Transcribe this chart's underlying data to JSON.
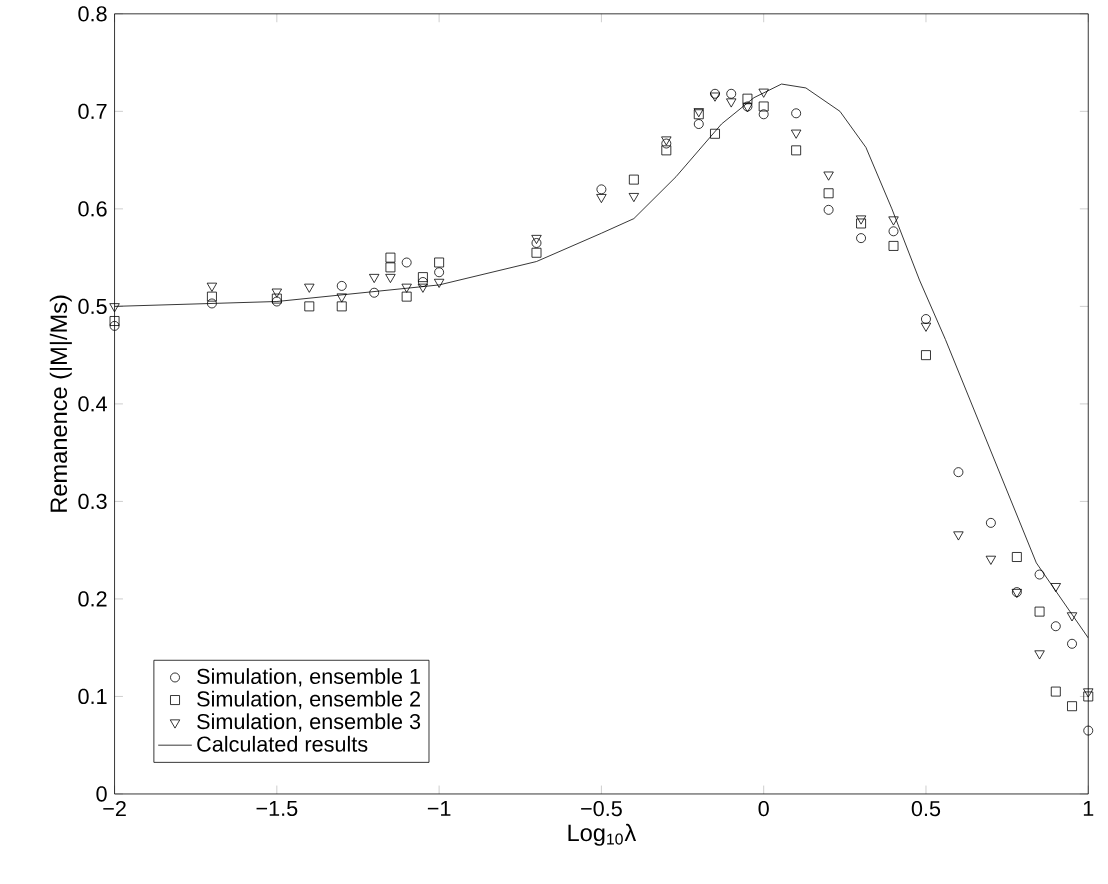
{
  "chart_data": {
    "type": "scatter",
    "xlabel": "Log$_{10}$λ",
    "ylabel": "Remanence (|M|/Ms)",
    "xlim": [
      -2,
      1
    ],
    "ylim": [
      0,
      0.8
    ],
    "xticks": [
      {
        "value": -2,
        "label": "−2"
      },
      {
        "value": -1.5,
        "label": "−1.5"
      },
      {
        "value": -1,
        "label": "−1"
      },
      {
        "value": -0.5,
        "label": "−0.5"
      },
      0,
      0.5,
      1
    ],
    "yticks": [
      0,
      0.1,
      0.2,
      0.3,
      0.4,
      0.5,
      0.6,
      0.7,
      0.8
    ],
    "legend": "bottom left",
    "grid": false,
    "series": [
      {
        "name": "Simulation, ensemble 1",
        "marker": "circle",
        "color": "#000000",
        "x": [
          -2,
          -1.7,
          -1.5,
          -1.3,
          -1.2,
          -1.1,
          -1.05,
          -1,
          -0.7,
          -0.5,
          -0.3,
          -0.2,
          -0.15,
          -0.1,
          -0.05,
          0,
          0.1,
          0.2,
          0.3,
          0.4,
          0.5,
          0.6,
          0.7,
          0.78,
          0.85,
          0.9,
          0.95,
          1
        ],
        "values": [
          0.48,
          0.503,
          0.505,
          0.521,
          0.514,
          0.545,
          0.525,
          0.535,
          0.565,
          0.62,
          0.667,
          0.687,
          0.718,
          0.718,
          0.705,
          0.697,
          0.698,
          0.599,
          0.57,
          0.577,
          0.487,
          0.33,
          0.278,
          0.207,
          0.225,
          0.172,
          0.154,
          0.065
        ]
      },
      {
        "name": "Simulation, ensemble 2",
        "marker": "square",
        "color": "#000000",
        "x": [
          -2,
          -1.7,
          -1.5,
          -1.4,
          -1.3,
          -1.15,
          -1.15,
          -1.1,
          -1.05,
          -1,
          -0.7,
          -0.4,
          -0.3,
          -0.2,
          -0.15,
          -0.05,
          0,
          0.1,
          0.2,
          0.3,
          0.4,
          0.5,
          0.78,
          0.85,
          0.9,
          0.95,
          1
        ],
        "values": [
          0.485,
          0.51,
          0.508,
          0.5,
          0.5,
          0.55,
          0.54,
          0.51,
          0.53,
          0.545,
          0.555,
          0.63,
          0.66,
          0.697,
          0.677,
          0.713,
          0.705,
          0.66,
          0.616,
          0.585,
          0.562,
          0.45,
          0.243,
          0.187,
          0.105,
          0.09,
          0.1
        ]
      },
      {
        "name": "Simulation, ensemble 3",
        "marker": "triangle",
        "color": "#000000",
        "x": [
          -2,
          -1.7,
          -1.5,
          -1.4,
          -1.3,
          -1.2,
          -1.15,
          -1.1,
          -1.05,
          -1,
          -0.7,
          -0.5,
          -0.4,
          -0.3,
          -0.2,
          -0.15,
          -0.1,
          -0.05,
          0,
          0.1,
          0.2,
          0.3,
          0.4,
          0.5,
          0.6,
          0.7,
          0.78,
          0.85,
          0.9,
          0.95,
          1
        ],
        "values": [
          0.5,
          0.521,
          0.515,
          0.52,
          0.51,
          0.53,
          0.53,
          0.52,
          0.52,
          0.525,
          0.57,
          0.612,
          0.613,
          0.671,
          0.7,
          0.716,
          0.71,
          0.705,
          0.72,
          0.678,
          0.635,
          0.59,
          0.589,
          0.48,
          0.266,
          0.241,
          0.207,
          0.144,
          0.213,
          0.183,
          0.105
        ]
      },
      {
        "name": "Calculated results",
        "type": "line",
        "marker": "none",
        "color": "#000000",
        "x": [
          -2,
          -1.5,
          -1,
          -0.7,
          -0.5,
          -0.4,
          -0.27,
          -0.13,
          -0.03,
          0.055,
          0.13,
          0.235,
          0.315,
          0.395,
          0.48,
          0.56,
          0.84,
          1
        ],
        "values": [
          0.5,
          0.505,
          0.522,
          0.546,
          0.575,
          0.59,
          0.633,
          0.687,
          0.714,
          0.728,
          0.724,
          0.7,
          0.663,
          0.6,
          0.527,
          0.466,
          0.237,
          0.16
        ]
      }
    ]
  }
}
